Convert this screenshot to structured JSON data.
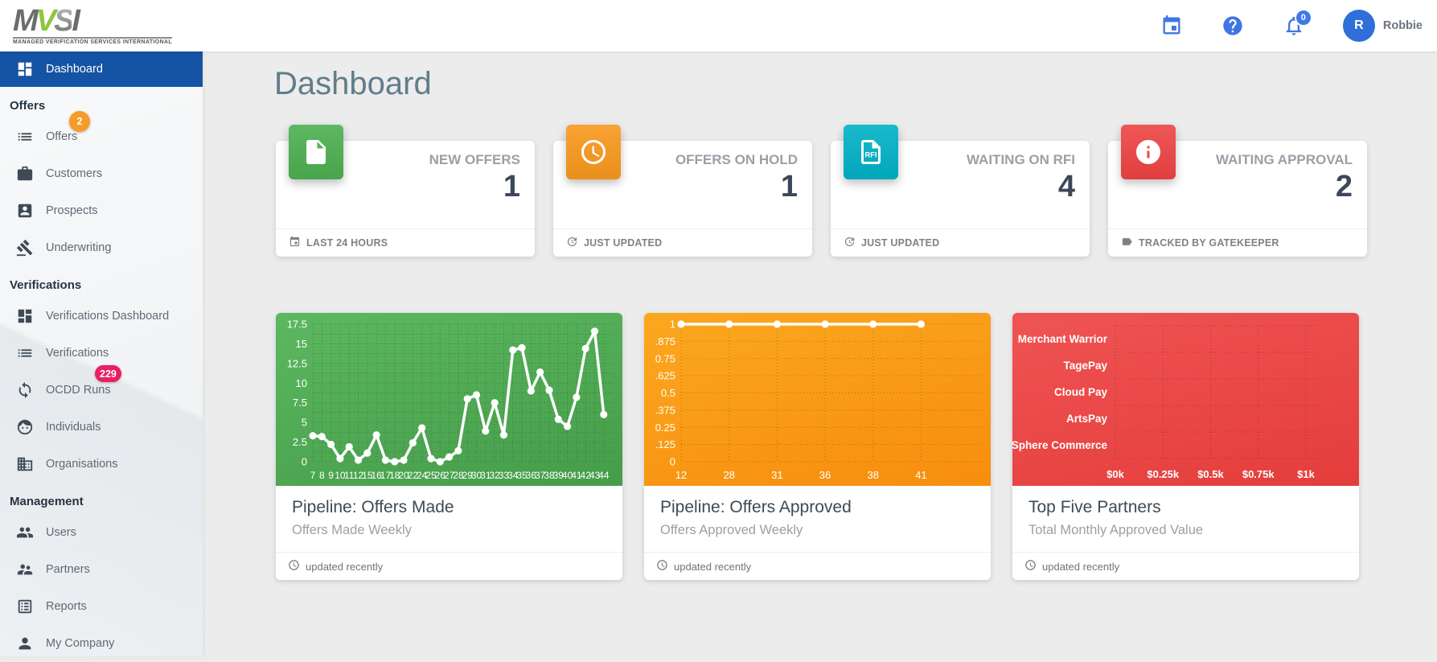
{
  "header": {
    "logo": {
      "text": "MVSI",
      "tagline": "MANAGED VERIFICATION SERVICES INTERNATIONAL"
    },
    "actions": {
      "calendar_icon": "calendar-icon",
      "help_icon": "help-icon",
      "notifications": {
        "icon": "bell-icon",
        "badge": "0"
      },
      "user": {
        "initial": "R",
        "name": "Robbie"
      }
    }
  },
  "colors": {
    "sidebar_active": "#1553a4",
    "header_icon_blue": "#4076e3",
    "badge_orange": "#f59c28",
    "badge_pink": "#e91e63",
    "page_title": "#607d8b",
    "green": "#4caf50",
    "orange": "#f8981d",
    "teal": "#00b1c6",
    "red": "#ee4343"
  },
  "sidebar": {
    "sections": [
      {
        "label": "",
        "items": [
          {
            "label": "Dashboard",
            "icon": "dashboard-icon",
            "active": true
          }
        ]
      },
      {
        "label": "Offers",
        "items": [
          {
            "label": "Offers",
            "icon": "list-icon",
            "badge": {
              "text": "2",
              "color": "#f59c28",
              "shape": "round"
            }
          },
          {
            "label": "Customers",
            "icon": "briefcase-icon"
          },
          {
            "label": "Prospects",
            "icon": "contact-card-icon"
          },
          {
            "label": "Underwriting",
            "icon": "gavel-icon"
          }
        ]
      },
      {
        "label": "Verifications",
        "items": [
          {
            "label": "Verifications Dashboard",
            "icon": "dashboard-icon"
          },
          {
            "label": "Verifications",
            "icon": "list-icon"
          },
          {
            "label": "OCDD Runs",
            "icon": "sync-icon",
            "badge": {
              "text": "229",
              "color": "#e91e63",
              "shape": "pill"
            }
          },
          {
            "label": "Individuals",
            "icon": "face-icon"
          },
          {
            "label": "Organisations",
            "icon": "building-icon"
          }
        ]
      },
      {
        "label": "Management",
        "items": [
          {
            "label": "Users",
            "icon": "users-icon"
          },
          {
            "label": "Partners",
            "icon": "partners-icon"
          },
          {
            "label": "Reports",
            "icon": "report-icon"
          },
          {
            "label": "My Company",
            "icon": "person-icon"
          }
        ]
      }
    ]
  },
  "page": {
    "title": "Dashboard"
  },
  "stat_cards": [
    {
      "title": "NEW OFFERS",
      "value": "1",
      "tile_color": "#4caf50",
      "tile_icon": "document-icon",
      "footer_icon": "calendar-icon",
      "footer": "LAST 24 HOURS"
    },
    {
      "title": "OFFERS ON HOLD",
      "value": "1",
      "tile_color": "#f8981d",
      "tile_icon": "clock-icon",
      "footer_icon": "update-icon",
      "footer": "JUST UPDATED"
    },
    {
      "title": "WAITING ON RFI",
      "value": "4",
      "tile_color": "#00b1c6",
      "tile_icon": "rfi-document-icon",
      "footer_icon": "update-icon",
      "footer": "JUST UPDATED"
    },
    {
      "title": "WAITING APPROVAL",
      "value": "2",
      "tile_color": "#ee4343",
      "tile_icon": "info-icon",
      "footer_icon": "tag-icon",
      "footer": "TRACKED BY GATEKEEPER"
    }
  ],
  "chart_cards": [
    {
      "title": "Pipeline: Offers Made",
      "subtitle": "Offers Made Weekly",
      "footer": "updated recently",
      "footer_icon": "clock-icon"
    },
    {
      "title": "Pipeline: Offers Approved",
      "subtitle": "Offers Approved Weekly",
      "footer": "updated recently",
      "footer_icon": "clock-icon"
    },
    {
      "title": "Top Five Partners",
      "subtitle": "Total Monthly Approved Value",
      "footer": "updated recently",
      "footer_icon": "clock-icon"
    }
  ],
  "chart_data": [
    {
      "type": "line",
      "title": "Pipeline: Offers Made",
      "subtitle": "Offers Made Weekly",
      "categories": [
        "7",
        "8",
        "9",
        "10",
        "11",
        "12",
        "15",
        "16",
        "17",
        "18",
        "20",
        "22",
        "24",
        "25",
        "26",
        "27",
        "28",
        "29",
        "30",
        "31",
        "32",
        "33",
        "34",
        "35",
        "36",
        "37",
        "38",
        "39",
        "40",
        "41",
        "42",
        "43",
        "44"
      ],
      "values": [
        3.3,
        3.2,
        2.2,
        0.4,
        1.9,
        0.2,
        1.1,
        3.4,
        0.2,
        0,
        0.2,
        2.4,
        4.3,
        0.4,
        0,
        0.6,
        1.4,
        8,
        8.5,
        3.9,
        7.5,
        3.4,
        14.2,
        14.5,
        9,
        11.4,
        9.1,
        5.4,
        4.5,
        8.2,
        14.4,
        16.6,
        6
      ],
      "ylim": [
        0,
        17.5
      ],
      "yticks": [
        0,
        2.5,
        5,
        7.5,
        10,
        12.5,
        15,
        17.5
      ],
      "ytick_labels": [
        "0",
        "2.5",
        "5",
        "7.5",
        "10",
        "12.5",
        "15",
        "17.5"
      ],
      "minor_y": true,
      "x_spread": 0.97,
      "x_label_size": 12,
      "grid": "dotted",
      "legend": "none",
      "panel": "green",
      "line_color": "#ffffff"
    },
    {
      "type": "line",
      "title": "Pipeline: Offers Approved",
      "subtitle": "Offers Approved Weekly",
      "categories": [
        "12",
        "28",
        "31",
        "36",
        "38",
        "41"
      ],
      "values": [
        1,
        1,
        1,
        1,
        1,
        1
      ],
      "ylim": [
        0,
        1
      ],
      "yticks": [
        0,
        0.125,
        0.25,
        0.375,
        0.5,
        0.625,
        0.75,
        0.875,
        1
      ],
      "ytick_labels": [
        "0",
        ".125",
        "0.25",
        ".375",
        "0.5",
        ".625",
        "0.75",
        ".875",
        "1"
      ],
      "minor_y": false,
      "x_spread": 0.8,
      "x_label_size": 13,
      "grid": "dotted",
      "legend": "none",
      "panel": "orange",
      "line_color": "#ffffff"
    },
    {
      "type": "bar",
      "orientation": "horizontal",
      "title": "Top Five Partners",
      "subtitle": "Total Monthly Approved Value",
      "categories": [
        "Merchant Warrior",
        "TagePay",
        "Cloud Pay",
        "ArtsPay",
        "Sphere Commerce"
      ],
      "values": [
        0,
        0,
        0,
        0,
        0
      ],
      "xticks": [
        0,
        0.25,
        0.5,
        0.75,
        1
      ],
      "xtick_labels": [
        "$0k",
        "$0.25k",
        "$0.5k",
        "$0.75k",
        "$1k"
      ],
      "xlim": [
        0,
        1.22
      ],
      "grid": "dotted",
      "legend": "none",
      "panel": "red",
      "bar_color": "#ffffff"
    }
  ]
}
